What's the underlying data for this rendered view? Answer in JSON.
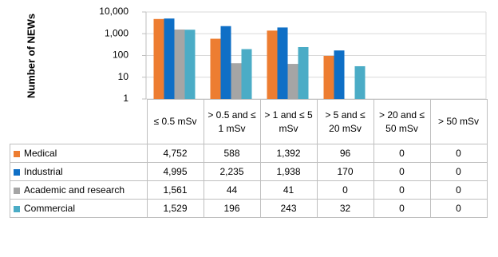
{
  "chart_data": {
    "type": "bar",
    "log_scale": true,
    "y_label": "Number of NEWs",
    "categories": [
      "≤ 0.5 mSv",
      "> 0.5 and ≤ 1 mSv",
      "> 1 and ≤ 5 mSv",
      "> 5 and ≤ 20 mSv",
      "> 20 and ≤ 50 mSv",
      "> 50 mSv"
    ],
    "series": [
      {
        "name": "Medical",
        "color": "#ed7d31",
        "values": [
          4752,
          588,
          1392,
          96,
          0,
          0
        ],
        "value_labels": [
          "4,752",
          "588",
          "1,392",
          "96",
          "0",
          "0"
        ]
      },
      {
        "name": "Industrial",
        "color": "#0f6fc6",
        "values": [
          4995,
          2235,
          1938,
          170,
          0,
          0
        ],
        "value_labels": [
          "4,995",
          "2,235",
          "1,938",
          "170",
          "0",
          "0"
        ]
      },
      {
        "name": "Academic and research",
        "color": "#a5a5a5",
        "values": [
          1561,
          44,
          41,
          0,
          0,
          0
        ],
        "value_labels": [
          "1,561",
          "44",
          "41",
          "0",
          "0",
          "0"
        ]
      },
      {
        "name": "Commercial",
        "color": "#4bacc6",
        "values": [
          1529,
          196,
          243,
          32,
          0,
          0
        ],
        "value_labels": [
          "1,529",
          "196",
          "243",
          "32",
          "0",
          "0"
        ]
      }
    ],
    "ylim": [
      1,
      10000
    ],
    "yticks": [
      1,
      10,
      100,
      {
        "value": 1000,
        "label": "1,000"
      },
      {
        "value": 10000,
        "label": "10,000"
      }
    ],
    "grid": true
  }
}
